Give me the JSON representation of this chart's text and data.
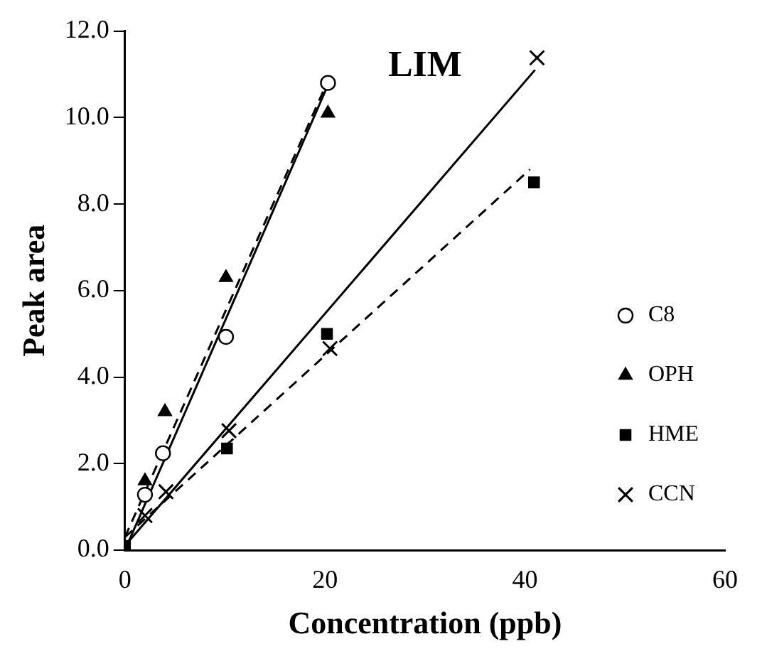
{
  "chart_data": {
    "type": "scatter",
    "xlabel": "Concentration (ppb)",
    "ylabel": "Peak area",
    "annotations": [
      "LIM"
    ],
    "xlim": [
      0,
      60
    ],
    "xticks": [
      0,
      20,
      40,
      60
    ],
    "ylim": [
      0,
      12
    ],
    "yticks": [
      {
        "value": 0,
        "label": "0.0"
      },
      {
        "value": 2,
        "label": "2.0"
      },
      {
        "value": 4,
        "label": "4.0"
      },
      {
        "value": 6,
        "label": "6.0"
      },
      {
        "value": 8,
        "label": "8.0"
      },
      {
        "value": 10,
        "label": "10.0"
      },
      {
        "value": 12,
        "label": "12.0"
      }
    ],
    "grid": false,
    "legend": "bottom right",
    "series": [
      {
        "name": "C8",
        "type": "scatter",
        "marker": "circle",
        "color": "#000000",
        "x": [
          2,
          3.8,
          10.1,
          20.3
        ],
        "values": [
          1.28,
          2.24,
          4.93,
          10.8
        ]
      },
      {
        "name": "OPH",
        "type": "scatter",
        "marker": "triangle",
        "color": "#000000",
        "x": [
          2,
          4,
          10.1,
          20.3
        ],
        "values": [
          1.6,
          3.2,
          6.3,
          10.1
        ]
      },
      {
        "name": "HME",
        "type": "scatter",
        "marker": "square",
        "color": "#000000",
        "x": [
          0,
          10.2,
          20.2,
          40.9
        ],
        "values": [
          0.1,
          2.35,
          5.0,
          8.5
        ]
      },
      {
        "name": "CCN",
        "type": "scatter",
        "marker": "cross",
        "color": "#000000",
        "x": [
          2,
          4.1,
          10.4,
          20.5,
          41.2
        ],
        "values": [
          0.8,
          1.35,
          2.76,
          4.66,
          11.38
        ]
      },
      {
        "type": "line",
        "line_style": "solid",
        "marker": "none",
        "color": "#000000",
        "x": [
          0,
          20.2
        ],
        "values": [
          0,
          10.7
        ]
      },
      {
        "type": "line",
        "line_style": "dashed",
        "marker": "none",
        "color": "#000000",
        "x": [
          0,
          20.2
        ],
        "values": [
          0.3,
          10.8
        ]
      },
      {
        "type": "line",
        "line_style": "dashed",
        "marker": "none",
        "color": "#000000",
        "x": [
          0,
          40.5
        ],
        "values": [
          0.3,
          8.8
        ]
      },
      {
        "type": "line",
        "line_style": "solid",
        "marker": "none",
        "color": "#000000",
        "x": [
          0,
          41
        ],
        "values": [
          0.1,
          11.1
        ]
      }
    ]
  }
}
